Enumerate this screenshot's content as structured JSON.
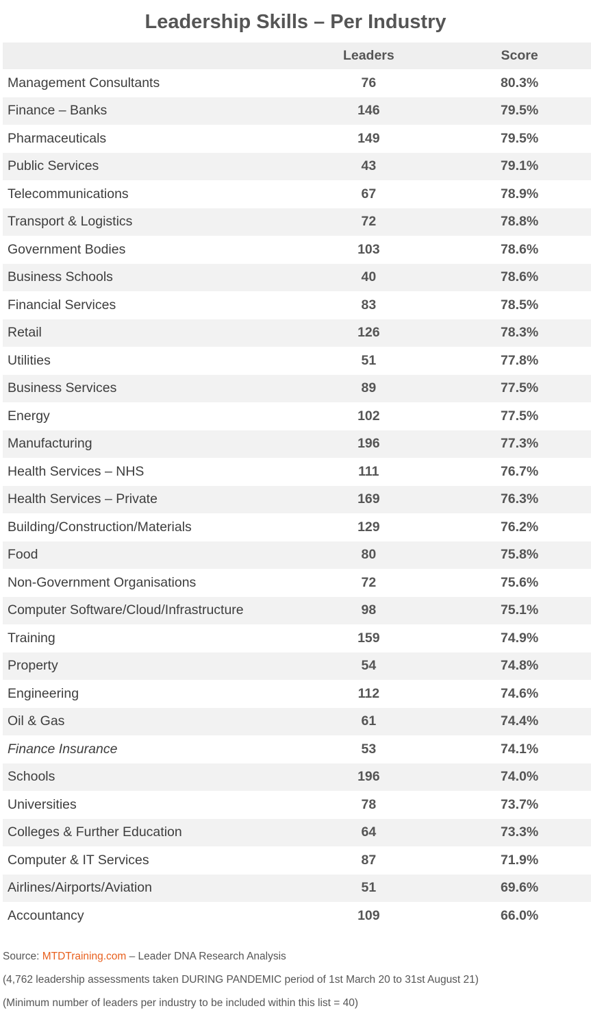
{
  "title": "Leadership Skills – Per Industry",
  "columns": {
    "industry": "",
    "leaders": "Leaders",
    "score": "Score"
  },
  "rows": [
    {
      "industry": "Management Consultants",
      "leaders": "76",
      "score": "80.3%"
    },
    {
      "industry": "Finance – Banks",
      "leaders": "146",
      "score": "79.5%"
    },
    {
      "industry": "Pharmaceuticals",
      "leaders": "149",
      "score": "79.5%"
    },
    {
      "industry": "Public Services",
      "leaders": "43",
      "score": "79.1%"
    },
    {
      "industry": "Telecommunications",
      "leaders": "67",
      "score": "78.9%"
    },
    {
      "industry": "Transport & Logistics",
      "leaders": "72",
      "score": "78.8%"
    },
    {
      "industry": "Government Bodies",
      "leaders": "103",
      "score": "78.6%"
    },
    {
      "industry": "Business Schools",
      "leaders": "40",
      "score": "78.6%"
    },
    {
      "industry": "Financial Services",
      "leaders": "83",
      "score": "78.5%"
    },
    {
      "industry": "Retail",
      "leaders": "126",
      "score": "78.3%"
    },
    {
      "industry": "Utilities",
      "leaders": "51",
      "score": "77.8%"
    },
    {
      "industry": "Business Services",
      "leaders": "89",
      "score": "77.5%"
    },
    {
      "industry": "Energy",
      "leaders": "102",
      "score": "77.5%"
    },
    {
      "industry": "Manufacturing",
      "leaders": "196",
      "score": "77.3%"
    },
    {
      "industry": "Health Services – NHS",
      "leaders": "111",
      "score": "76.7%"
    },
    {
      "industry": "Health Services – Private",
      "leaders": "169",
      "score": "76.3%"
    },
    {
      "industry": "Building/Construction/Materials",
      "leaders": "129",
      "score": "76.2%"
    },
    {
      "industry": "Food",
      "leaders": "80",
      "score": "75.8%"
    },
    {
      "industry": "Non-Government Organisations",
      "leaders": "72",
      "score": "75.6%"
    },
    {
      "industry": "Computer Software/Cloud/Infrastructure",
      "leaders": "98",
      "score": "75.1%"
    },
    {
      "industry": "Training",
      "leaders": "159",
      "score": "74.9%"
    },
    {
      "industry": "Property",
      "leaders": "54",
      "score": "74.8%"
    },
    {
      "industry": "Engineering",
      "leaders": "112",
      "score": "74.6%"
    },
    {
      "industry": "Oil & Gas",
      "leaders": "61",
      "score": "74.4%"
    },
    {
      "industry": "Finance Insurance",
      "leaders": "53",
      "score": "74.1%",
      "italic": true
    },
    {
      "industry": "Schools",
      "leaders": "196",
      "score": "74.0%"
    },
    {
      "industry": "Universities",
      "leaders": "78",
      "score": "73.7%"
    },
    {
      "industry": "Colleges & Further Education",
      "leaders": "64",
      "score": "73.3%"
    },
    {
      "industry": "Computer & IT Services",
      "leaders": "87",
      "score": "71.9%"
    },
    {
      "industry": "Airlines/Airports/Aviation",
      "leaders": "51",
      "score": "69.6%"
    },
    {
      "industry": "Accountancy",
      "leaders": "109",
      "score": "66.0%"
    }
  ],
  "footer": {
    "source_prefix": "Source: ",
    "source_link": "MTDTraining.com",
    "source_suffix": " – Leader DNA Research Analysis",
    "note1": "(4,762 leadership assessments taken DURING PANDEMIC period of 1st March 20 to 31st August 21)",
    "note2": "(Minimum number of leaders per industry to be included within this list = 40)"
  },
  "colors": {
    "link": "#e8601e",
    "stripe": "#f2f2f2",
    "text": "#3d3d3d"
  }
}
